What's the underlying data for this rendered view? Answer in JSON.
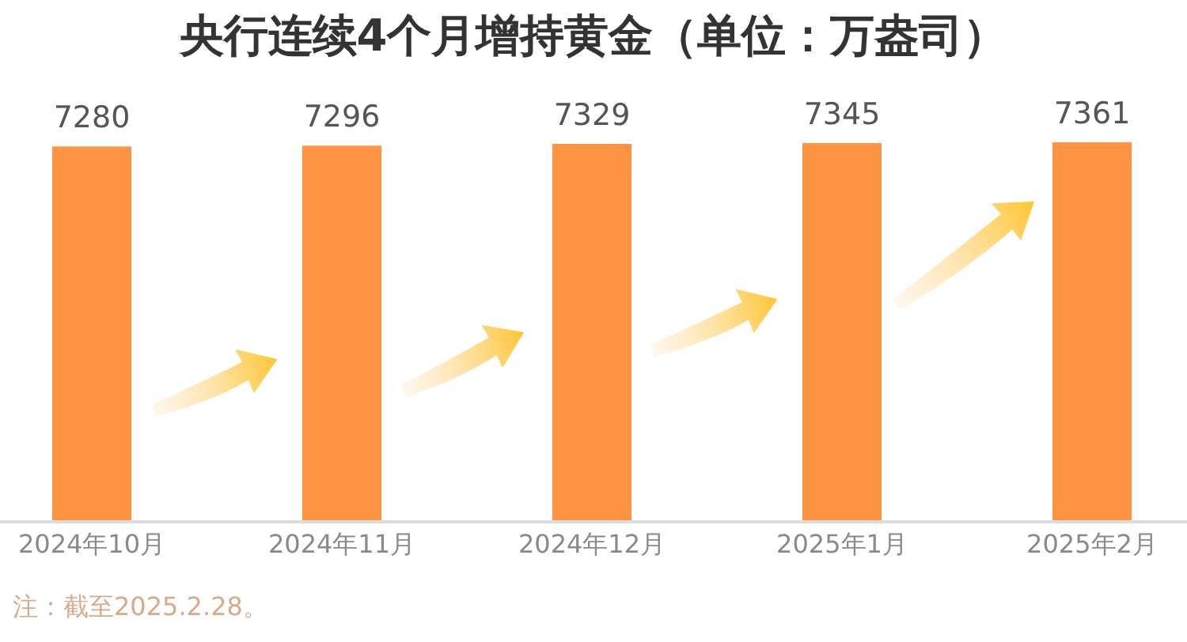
{
  "chart_data": {
    "type": "bar",
    "title": "央行连续4个月增持黄金（单位：万盎司）",
    "categories": [
      "2024年10月",
      "2024年11月",
      "2024年12月",
      "2025年1月",
      "2025年2月"
    ],
    "values": [
      7280,
      7296,
      7329,
      7345,
      7361
    ],
    "color": "#fe9444",
    "tick_labels": "x",
    "data_labels": true,
    "grid": false,
    "legend": false,
    "annotations": [
      "注：截至2025.2.28。"
    ]
  }
}
